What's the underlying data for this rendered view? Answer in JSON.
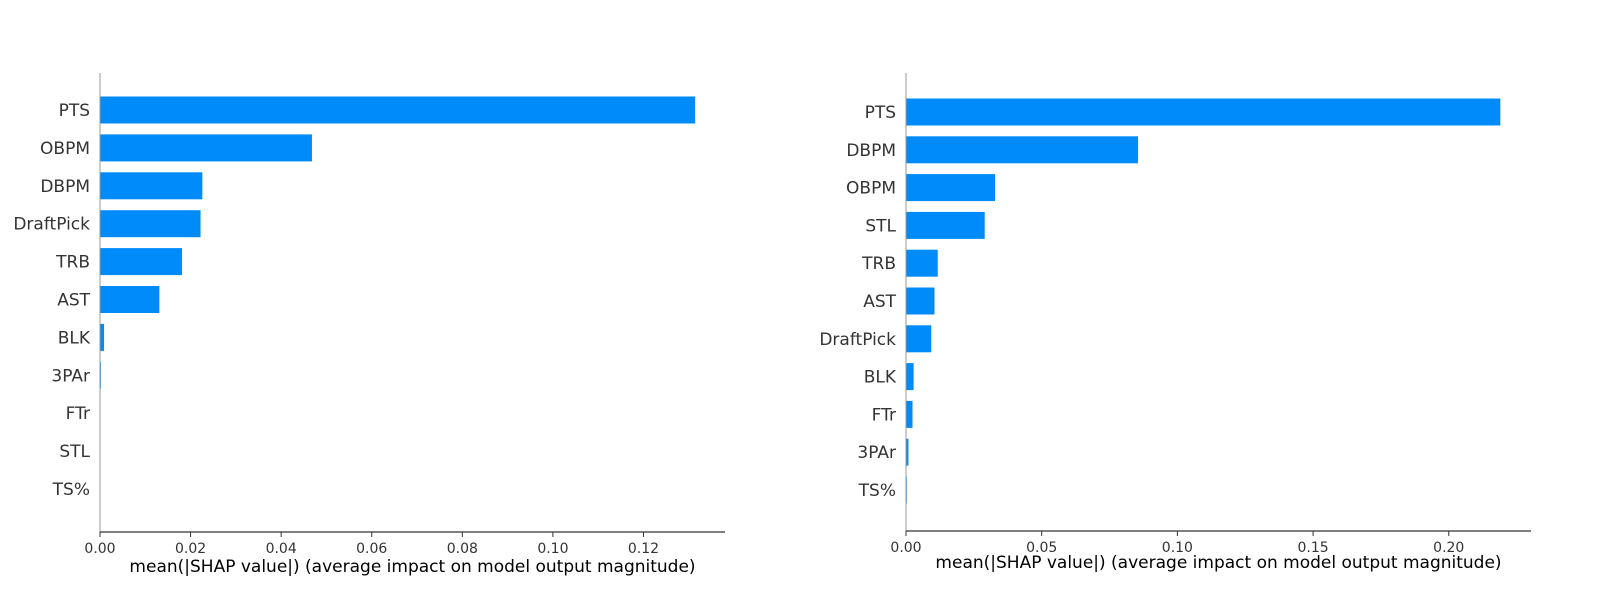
{
  "chart_data": [
    {
      "type": "bar",
      "orientation": "horizontal",
      "categories": [
        "PTS",
        "OBPM",
        "DBPM",
        "DraftPick",
        "TRB",
        "AST",
        "BLK",
        "3PAr",
        "FTr",
        "STL",
        "TS%"
      ],
      "values": [
        0.1314,
        0.0468,
        0.0226,
        0.0222,
        0.0181,
        0.0131,
        0.0009,
        0.0002,
        0.0,
        0.0,
        0.0
      ],
      "xlabel": "mean(|SHAP value|) (average impact on model output magnitude)",
      "ylabel": "",
      "xlim": [
        0,
        0.138
      ],
      "xticks": [
        "0.00",
        "0.02",
        "0.04",
        "0.06",
        "0.08",
        "0.10",
        "0.12"
      ],
      "xtick_values": [
        0,
        0.02,
        0.04,
        0.06,
        0.08,
        0.1,
        0.12
      ],
      "grid": false,
      "bar_color": "#008bfb"
    },
    {
      "type": "bar",
      "orientation": "horizontal",
      "categories": [
        "PTS",
        "DBPM",
        "OBPM",
        "STL",
        "TRB",
        "AST",
        "DraftPick",
        "BLK",
        "FTr",
        "3PAr",
        "TS%"
      ],
      "values": [
        0.219,
        0.0855,
        0.0328,
        0.029,
        0.0117,
        0.0105,
        0.0093,
        0.0028,
        0.0024,
        0.0009,
        0.0003
      ],
      "xlabel": "mean(|SHAP value|) (average impact on model output magnitude)",
      "ylabel": "",
      "xlim": [
        0,
        0.2303
      ],
      "xticks": [
        "0.00",
        "0.05",
        "0.10",
        "0.15",
        "0.20"
      ],
      "xtick_values": [
        0,
        0.05,
        0.1,
        0.15,
        0.2
      ],
      "grid": false,
      "bar_color": "#008bfb"
    }
  ]
}
